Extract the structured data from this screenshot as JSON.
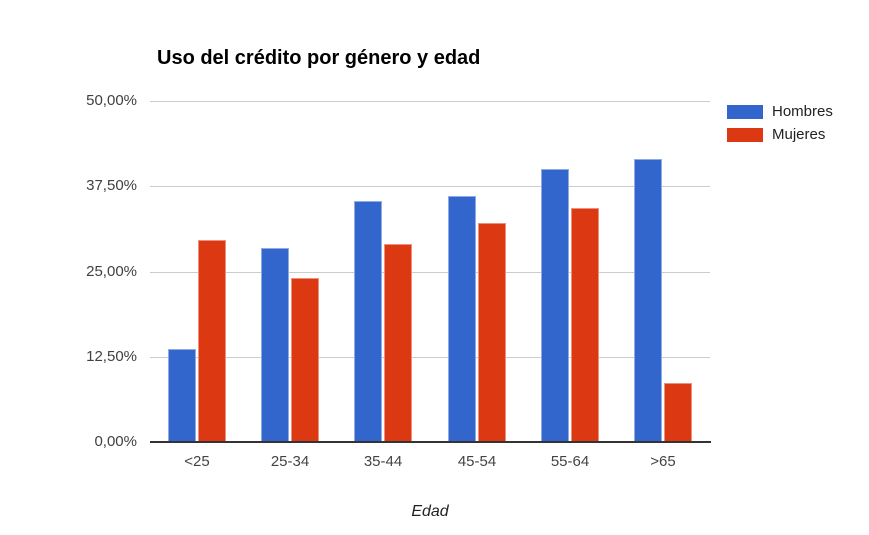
{
  "chart_data": {
    "type": "bar",
    "title": "Uso del crédito por género y edad",
    "xlabel": "Edad",
    "ylabel": "",
    "categories": [
      "<25",
      "25-34",
      "35-44",
      "45-54",
      "55-64",
      ">65"
    ],
    "series": [
      {
        "name": "Hombres",
        "color": "#3366CC",
        "values": [
          13.6,
          28.4,
          35.4,
          36.0,
          40.0,
          41.5
        ]
      },
      {
        "name": "Mujeres",
        "color": "#DC3912",
        "values": [
          29.6,
          24.0,
          29.0,
          32.1,
          34.3,
          8.7
        ]
      }
    ],
    "ylim": [
      0,
      50
    ],
    "ytick_values": [
      0,
      12.5,
      25,
      37.5,
      50
    ],
    "ytick_labels": [
      "0,00%",
      "12,50%",
      "25,00%",
      "37,50%",
      "50,00%"
    ],
    "grid": true,
    "legend_position": "right",
    "colors": {
      "gridline": "#cccccc",
      "axis_line": "#333333",
      "tick_text": "#404040",
      "title_text": "#000000",
      "background": "#ffffff"
    }
  }
}
